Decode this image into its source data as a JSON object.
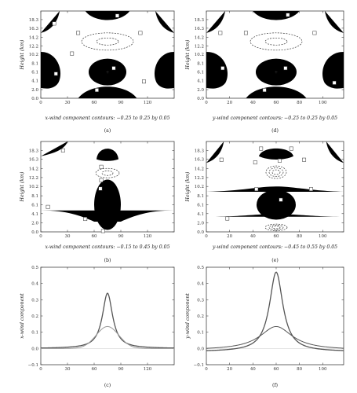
{
  "chart_data": [
    {
      "id": "a",
      "type": "contour",
      "panel_label": "(a)",
      "xlabel": "x-wind component contours: −0.25 to 0.25 by 0.05",
      "ylabel": "Height (km)",
      "xlim": [
        0,
        150
      ],
      "ylim": [
        0,
        20.3
      ],
      "xticks": [
        "0",
        "30",
        "60",
        "90",
        "120"
      ],
      "xtick_values": [
        0,
        30,
        60,
        90,
        120
      ],
      "yticks": [
        "0.0",
        "2.0",
        "4.1",
        "6.1",
        "8.1",
        "10.2",
        "12.2",
        "14.2",
        "16.3",
        "18.3"
      ],
      "ytick_values": [
        0.0,
        2.0,
        4.1,
        6.1,
        8.1,
        10.2,
        12.2,
        14.2,
        16.3,
        18.3
      ],
      "contour_levels": {
        "min": -0.25,
        "max": 0.25,
        "step": 0.05
      },
      "center": {
        "x": 75,
        "y": 6.1,
        "marker": "+"
      }
    },
    {
      "id": "b",
      "type": "contour",
      "panel_label": "(b)",
      "xlabel": "x-wind component contours: −0.15 to 0.45 by 0.05",
      "ylabel": "Height (km)",
      "xlim": [
        0,
        150
      ],
      "ylim": [
        0,
        20.3
      ],
      "xticks": [
        "0",
        "30",
        "60",
        "90",
        "120"
      ],
      "xtick_values": [
        0,
        30,
        60,
        90,
        120
      ],
      "yticks": [
        "0.0",
        "2.0",
        "4.1",
        "6.1",
        "8.1",
        "10.2",
        "12.2",
        "14.2",
        "16.3",
        "18.3"
      ],
      "ytick_values": [
        0.0,
        2.0,
        4.1,
        6.1,
        8.1,
        10.2,
        12.2,
        14.2,
        16.3,
        18.3
      ],
      "contour_levels": {
        "min": -0.15,
        "max": 0.45,
        "step": 0.05
      },
      "center": {
        "x": 75,
        "y": 6.1
      }
    },
    {
      "id": "c",
      "type": "line",
      "panel_label": "(c)",
      "xlabel": "",
      "ylabel": "x-wind component",
      "xlim": [
        0,
        150
      ],
      "ylim": [
        -0.1,
        0.5
      ],
      "xticks": [
        "0",
        "30",
        "60",
        "90",
        "120"
      ],
      "xtick_values": [
        0,
        30,
        60,
        90,
        120
      ],
      "yticks": [
        "−0.1",
        "0.0",
        "0.1",
        "0.2",
        "0.3",
        "0.4",
        "0.5"
      ],
      "ytick_values": [
        -0.1,
        0.0,
        0.1,
        0.2,
        0.3,
        0.4,
        0.5
      ],
      "series": [
        {
          "peak_x": 75,
          "peak_y": 0.34,
          "width": 7,
          "baseline": 0.0,
          "shape": "lorentz",
          "color": "#555555"
        },
        {
          "peak_x": 75,
          "peak_y": 0.135,
          "width": 18,
          "baseline": 0.0,
          "shape": "gauss",
          "color": "#999999"
        }
      ]
    },
    {
      "id": "d",
      "type": "contour",
      "panel_label": "(d)",
      "xlabel": "y-wind component contours: −0.25 to 0.25 by 0.05",
      "ylabel": "Height (km)",
      "xlim": [
        0,
        118
      ],
      "ylim": [
        0,
        20.3
      ],
      "xticks": [
        "0",
        "20",
        "40",
        "60",
        "80",
        "100"
      ],
      "xtick_values": [
        0,
        20,
        40,
        60,
        80,
        100
      ],
      "yticks": [
        "0.0",
        "2.0",
        "4.1",
        "6.1",
        "8.1",
        "10.2",
        "12.2",
        "14.2",
        "16.3",
        "18.3"
      ],
      "ytick_values": [
        0.0,
        2.0,
        4.1,
        6.1,
        8.1,
        10.2,
        12.2,
        14.2,
        16.3,
        18.3
      ],
      "contour_levels": {
        "min": -0.25,
        "max": 0.25,
        "step": 0.05
      },
      "center": {
        "x": 60,
        "y": 6.1,
        "marker": "+"
      }
    },
    {
      "id": "e",
      "type": "contour",
      "panel_label": "(e)",
      "xlabel": "y-wind component contours: −0.45 to 0.55 by 0.05",
      "ylabel": "Height (km)",
      "xlim": [
        0,
        118
      ],
      "ylim": [
        0,
        20.3
      ],
      "xticks": [
        "0",
        "20",
        "40",
        "60",
        "80",
        "100"
      ],
      "xtick_values": [
        0,
        20,
        40,
        60,
        80,
        100
      ],
      "yticks": [
        "0.0",
        "2.0",
        "4.1",
        "6.1",
        "8.1",
        "10.2",
        "12.2",
        "14.2",
        "16.3",
        "18.3"
      ],
      "ytick_values": [
        0.0,
        2.0,
        4.1,
        6.1,
        8.1,
        10.2,
        12.2,
        14.2,
        16.3,
        18.3
      ],
      "contour_levels": {
        "min": -0.45,
        "max": 0.55,
        "step": 0.05
      },
      "center": {
        "x": 60,
        "y": 6.1
      }
    },
    {
      "id": "f",
      "type": "line",
      "panel_label": "(f)",
      "xlabel": "",
      "ylabel": "y-wind component",
      "xlim": [
        0,
        118
      ],
      "ylim": [
        -0.1,
        0.5
      ],
      "xticks": [
        "0",
        "20",
        "40",
        "60",
        "80",
        "100"
      ],
      "xtick_values": [
        0,
        20,
        40,
        60,
        80,
        100
      ],
      "yticks": [
        "−0.1",
        "0.0",
        "0.1",
        "0.2",
        "0.3",
        "0.4",
        "0.5"
      ],
      "ytick_values": [
        -0.1,
        0.0,
        0.1,
        0.2,
        0.3,
        0.4,
        0.5
      ],
      "series": [
        {
          "peak_x": 60,
          "peak_y": 0.47,
          "width": 7,
          "baseline": -0.02,
          "shape": "lorentz",
          "color": "#555555"
        },
        {
          "peak_x": 60,
          "peak_y": 0.135,
          "width": 17,
          "baseline": -0.01,
          "shape": "lorentz",
          "color": "#555555"
        }
      ]
    }
  ]
}
